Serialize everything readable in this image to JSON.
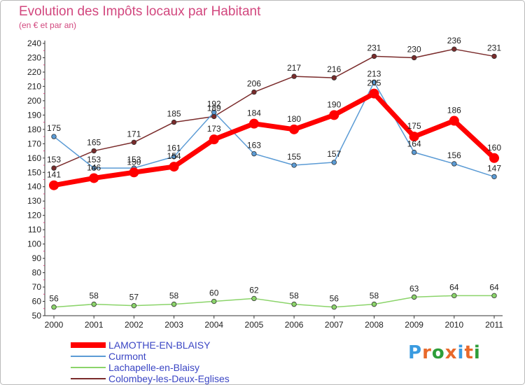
{
  "title": "Evolution des Impôts locaux par Habitant",
  "subtitle": "(en € et par an)",
  "brand": {
    "text": "Proxiti",
    "colors": [
      "#3a9be0",
      "#e8692b",
      "#2e9e3a",
      "#e8692b",
      "#3a9be0",
      "#e8692b",
      "#2e9e3a"
    ]
  },
  "chart_data": {
    "type": "line",
    "title": "Evolution des Impôts locaux par Habitant",
    "subtitle": "(en € et par an)",
    "xlabel": "",
    "ylabel": "",
    "ylim": [
      50,
      240
    ],
    "ytick_step": 10,
    "grid": false,
    "legend_position": "bottom-left",
    "x": [
      "2000",
      "2001",
      "2002",
      "2003",
      "2004",
      "2005",
      "2006",
      "2007",
      "2008",
      "2009",
      "2010",
      "2011"
    ],
    "series": [
      {
        "name": "LAMOTHE-EN-BLAISY",
        "color": "#ff0000",
        "emphasis": true,
        "values": [
          141,
          146,
          150,
          154,
          173,
          184,
          180,
          190,
          205,
          175,
          186,
          160
        ]
      },
      {
        "name": "Curmont",
        "color": "#5b9bd5",
        "emphasis": false,
        "values": [
          175,
          153,
          153,
          161,
          192,
          163,
          155,
          157,
          213,
          164,
          156,
          147
        ]
      },
      {
        "name": "Lachapelle-en-Blaisy",
        "color": "#8bd46a",
        "emphasis": false,
        "values": [
          56,
          58,
          57,
          58,
          60,
          62,
          58,
          56,
          58,
          63,
          64,
          64
        ]
      },
      {
        "name": "Colombey-les-Deux-Eglises",
        "color": "#7a2b2b",
        "emphasis": false,
        "values": [
          153,
          165,
          171,
          185,
          189,
          206,
          217,
          216,
          231,
          230,
          236,
          231
        ]
      }
    ]
  }
}
